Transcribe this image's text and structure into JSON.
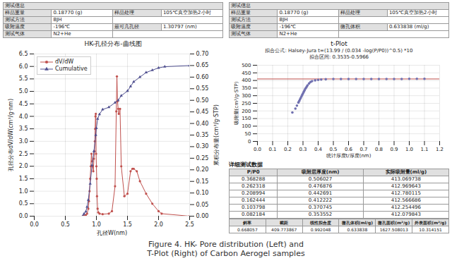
{
  "chart_data": [
    {
      "type": "line",
      "title": "HK-孔径分布-曲线图",
      "xlabel": "孔径W(nm)",
      "ylabel": "孔径分布dV/dW(cm³/g·nm)",
      "y2label": "累积分布量(cm³/g·STP)",
      "xlim": [
        0.0,
        2.5
      ],
      "xticks": [
        {
          "value": 0.0,
          "label": "0.0"
        },
        0.5,
        {
          "value": 1.0,
          "label": "1.0"
        },
        1.5,
        {
          "value": 2.0,
          "label": "2.0"
        },
        2.5
      ],
      "ylim": [
        0.0,
        6.5
      ],
      "yticks": [
        {
          "value": 0.0,
          "label": "0.0"
        },
        0.5,
        {
          "value": 1.0,
          "label": "1.0"
        },
        1.5,
        {
          "value": 2.0,
          "label": "2.0"
        },
        2.5,
        {
          "value": 3.0,
          "label": "3.0"
        },
        3.5,
        {
          "value": 4.0,
          "label": "4.0"
        },
        4.5,
        {
          "value": 5.0,
          "label": "5.0"
        },
        5.5,
        {
          "value": 6.0,
          "label": "6.0"
        },
        6.5
      ],
      "y2lim": [
        0.0,
        0.7
      ],
      "y2ticks": [
        {
          "value": 0.0,
          "label": "0.00"
        },
        0.05,
        {
          "value": 0.1,
          "label": "0.10"
        },
        0.15,
        {
          "value": 0.2,
          "label": "0.20"
        },
        0.25,
        {
          "value": 0.3,
          "label": "0.30"
        },
        0.35,
        {
          "value": 0.4,
          "label": "0.40"
        },
        0.45,
        {
          "value": 0.5,
          "label": "0.50"
        },
        0.55,
        {
          "value": 0.6,
          "label": "0.60"
        },
        0.65,
        {
          "value": 0.7,
          "label": "0.70"
        }
      ],
      "grid": true,
      "legend": "upper left",
      "series": [
        {
          "name": "dV/dW",
          "color": "#c0504d",
          "marker": "circle",
          "x": [
            0.78,
            0.8,
            0.83,
            0.85,
            0.87,
            0.88,
            0.89,
            0.9,
            0.91,
            0.92,
            0.93,
            0.94,
            0.95,
            0.96,
            0.97,
            0.975,
            0.98,
            0.985,
            0.99,
            0.995,
            1.0,
            1.005,
            1.01,
            1.02,
            1.03,
            1.05,
            1.1,
            1.2,
            1.25,
            1.3,
            1.32,
            1.33,
            1.34,
            1.35,
            1.36,
            1.38,
            1.4,
            1.45,
            1.5,
            1.55,
            1.58,
            1.6,
            1.65,
            1.7,
            1.8,
            1.9,
            2.0,
            2.05,
            2.5
          ],
          "values": [
            0.0,
            0.02,
            0.05,
            0.1,
            0.3,
            0.6,
            1.0,
            1.5,
            2.0,
            2.5,
            2.2,
            2.0,
            1.8,
            2.3,
            2.6,
            3.0,
            3.5,
            4.0,
            4.1,
            2.5,
            2.0,
            1.5,
            0.8,
            0.3,
            0.15,
            0.1,
            0.08,
            0.1,
            0.2,
            1.2,
            4.2,
            5.6,
            4.6,
            4.3,
            4.1,
            4.3,
            2.0,
            0.8,
            0.9,
            1.8,
            1.9,
            1.9,
            1.8,
            1.4,
            0.9,
            0.5,
            0.2,
            0.1,
            0.0
          ]
        },
        {
          "name": "Cumulative",
          "color": "#4f4f8f",
          "marker": "triangle",
          "axis": "y2",
          "x": [
            0.78,
            0.8,
            0.83,
            0.85,
            0.87,
            0.9,
            0.93,
            0.96,
            0.99,
            1.0,
            1.02,
            1.05,
            1.1,
            1.2,
            1.3,
            1.35,
            1.4,
            1.5,
            1.55,
            1.6,
            1.7,
            1.8,
            1.9,
            2.0,
            2.1,
            2.5
          ],
          "values": [
            0.0,
            0.01,
            0.02,
            0.04,
            0.07,
            0.14,
            0.22,
            0.28,
            0.35,
            0.38,
            0.42,
            0.44,
            0.46,
            0.47,
            0.49,
            0.5,
            0.52,
            0.54,
            0.56,
            0.58,
            0.6,
            0.62,
            0.63,
            0.64,
            0.645,
            0.65
          ]
        }
      ]
    },
    {
      "type": "scatter",
      "title": "t-Plot",
      "subtitle": [
        "拟合公式: Halsey-Jura t=(13.99 / (0.034 -log(P/P0))^0.5) *10",
        "拟合区间: 0.3535-0.5966"
      ],
      "xlabel": "统计厚度t/厚度(nm)",
      "ylabel": "吸附量(cm³/g·STP)",
      "xlim": [
        0.0,
        1.2
      ],
      "xticks": [
        {
          "value": 0.0,
          "label": "0.0"
        },
        0.1,
        0.2,
        0.3,
        0.4,
        0.5,
        0.6,
        0.7,
        0.8,
        0.9,
        {
          "value": 1.0,
          "label": "1.0"
        },
        1.1,
        1.2
      ],
      "ylim": [
        0,
        500
      ],
      "yticks": [
        0,
        50,
        100,
        150,
        200,
        250,
        300,
        350,
        400,
        450,
        500
      ],
      "grid": true,
      "series": [
        {
          "type": "scatter",
          "color": "#7070b0",
          "marker": "circle",
          "x": [
            0.23,
            0.25,
            0.26,
            0.27,
            0.275,
            0.28,
            0.285,
            0.29,
            0.295,
            0.3,
            0.305,
            0.31,
            0.315,
            0.32,
            0.325,
            0.33,
            0.34,
            0.35,
            0.36,
            0.38,
            0.4,
            0.42,
            0.45,
            0.5,
            0.55,
            0.6,
            0.65,
            0.7,
            0.75,
            0.8,
            0.85,
            0.9,
            0.95,
            1.0,
            1.05,
            1.1
          ],
          "values": [
            190,
            215,
            235,
            255,
            265,
            275,
            285,
            295,
            305,
            315,
            325,
            335,
            345,
            352,
            360,
            368,
            380,
            390,
            396,
            401,
            404,
            406,
            408,
            410,
            410,
            410,
            410,
            410,
            410,
            410,
            410,
            410,
            410,
            411,
            411,
            411
          ]
        },
        {
          "type": "line",
          "color": "#c0504d",
          "x": [
            0.0,
            1.2
          ],
          "values": [
            410,
            410
          ]
        }
      ]
    }
  ],
  "tables": {
    "left_info": {
      "title": "测试信息",
      "rows": [
        [
          "样品重量",
          "0.18770 (g)",
          "样品处理",
          "105℃真空加热2小时"
        ],
        [
          "测试方法",
          "BJH"
        ],
        [
          "吸附温度",
          "-196℃",
          "最可几孔径",
          "1.30797 (nm)"
        ],
        [
          "测试气体",
          "N2+He"
        ]
      ]
    },
    "right_info": {
      "title": "测试信息",
      "rows": [
        [
          "样品重量",
          "0.18770 (g)",
          "样品处理",
          "105℃真空加热2小时"
        ],
        [
          "测试方法",
          "BJH"
        ],
        [
          "吸附温度",
          "-196℃",
          "微孔体积",
          "0.633838 (ml/g)"
        ],
        [
          "测试气体",
          "N2+He"
        ]
      ]
    },
    "detail": {
      "title": "详细测试数据",
      "columns": [
        "P/P0",
        "吸附层厚度(nm)",
        "实际吸附量(ml/g)"
      ],
      "rows": [
        [
          "0.368288",
          "0.506027",
          "413.069738"
        ],
        [
          "0.262318",
          "0.476876",
          "412.969643"
        ],
        [
          "0.208994",
          "0.442691",
          "412.780115"
        ],
        [
          "0.162444",
          "0.412222",
          "412.566686"
        ],
        [
          "0.103798",
          "0.370745",
          "412.254496"
        ],
        [
          "0.082184",
          "0.353552",
          "412.079843"
        ]
      ],
      "summary_columns": [
        "斜率",
        "截距",
        "线性拟合度",
        "微孔体积(ml/g)",
        "微孔面积(m²/g)",
        "外表面积(m²/g)"
      ],
      "summary_row": [
        "0.668057",
        "409.773867",
        "0.992048",
        "0.633838",
        "1627.508013",
        "10.314151"
      ]
    }
  },
  "caption": [
    "Figure 4. HK- Pore distribution (Left) and",
    "T-Plot (Right) of Carbon Aerogel samples"
  ]
}
